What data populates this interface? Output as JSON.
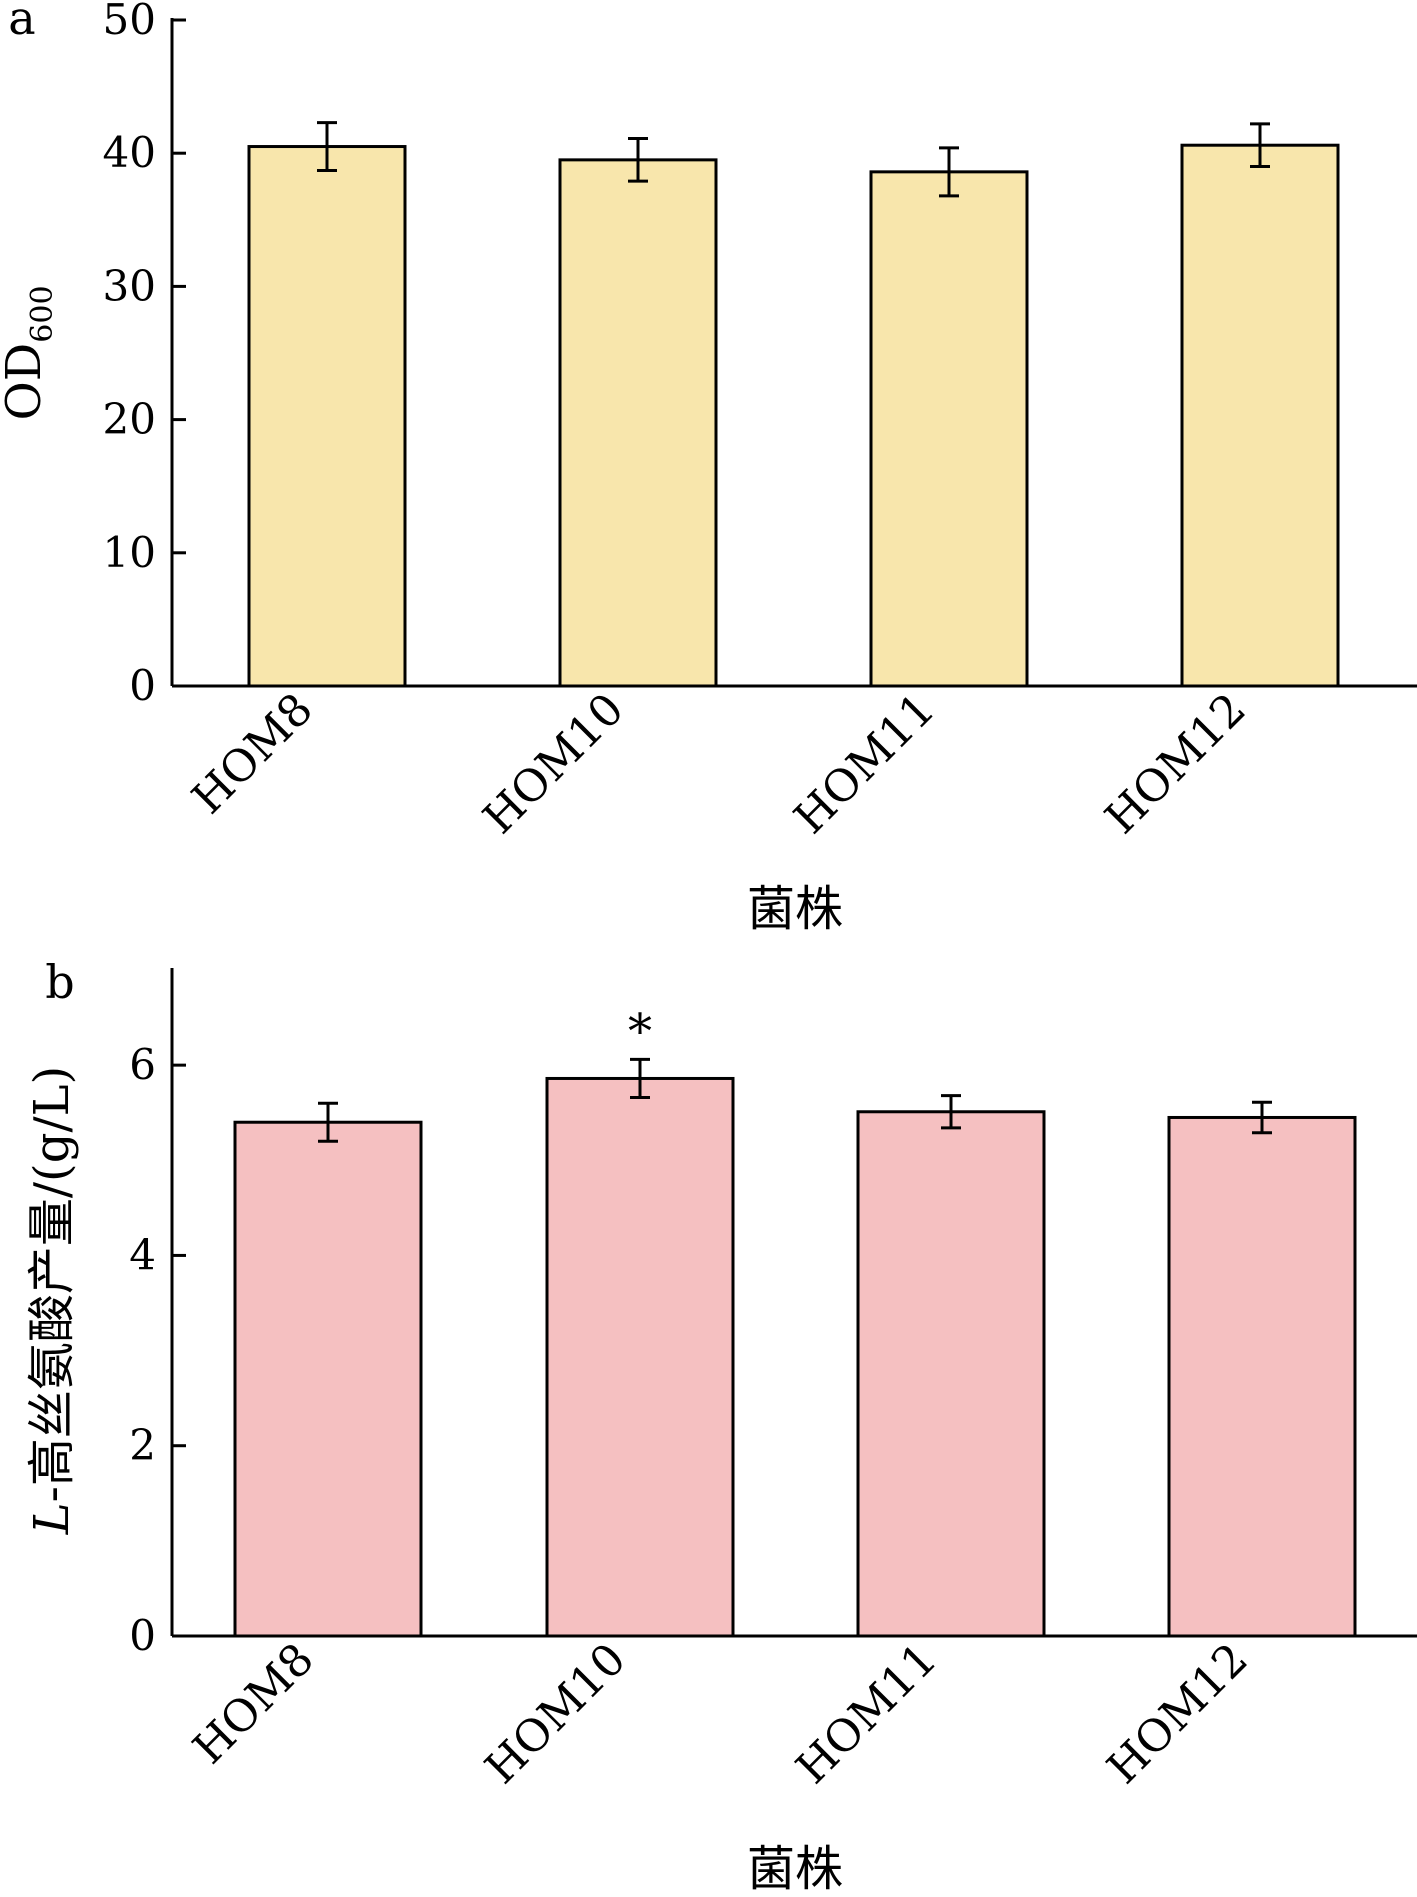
{
  "chart_data": [
    {
      "type": "bar",
      "panel_label": "a",
      "categories": [
        "HOM8",
        "HOM10",
        "HOM11",
        "HOM12"
      ],
      "values": [
        40.5,
        39.5,
        38.6,
        40.6
      ],
      "errors": [
        1.8,
        1.6,
        1.8,
        1.6
      ],
      "annotations": [
        "",
        "",
        "",
        ""
      ],
      "ylabel_main": "OD",
      "ylabel_sub": "600",
      "xlabel": "菌株",
      "ylim": [
        0,
        50
      ],
      "yticks": [
        0,
        10,
        20,
        30,
        40,
        50
      ],
      "bar_color": "#f8e6ac",
      "legend": "none",
      "grid": false
    },
    {
      "type": "bar",
      "panel_label": "b",
      "categories": [
        "HOM8",
        "HOM10",
        "HOM11",
        "HOM12"
      ],
      "values": [
        5.4,
        5.86,
        5.51,
        5.45
      ],
      "errors": [
        0.2,
        0.2,
        0.17,
        0.16
      ],
      "annotations": [
        "",
        "*",
        "",
        ""
      ],
      "ylabel_italic": "L",
      "ylabel_rest": "-高丝氨酸产量/(g/L)",
      "xlabel": "菌株",
      "ylim": [
        0,
        7
      ],
      "yticks": [
        0,
        2,
        4,
        6
      ],
      "bar_color": "#f5c0c1",
      "legend": "none",
      "grid": false
    }
  ]
}
